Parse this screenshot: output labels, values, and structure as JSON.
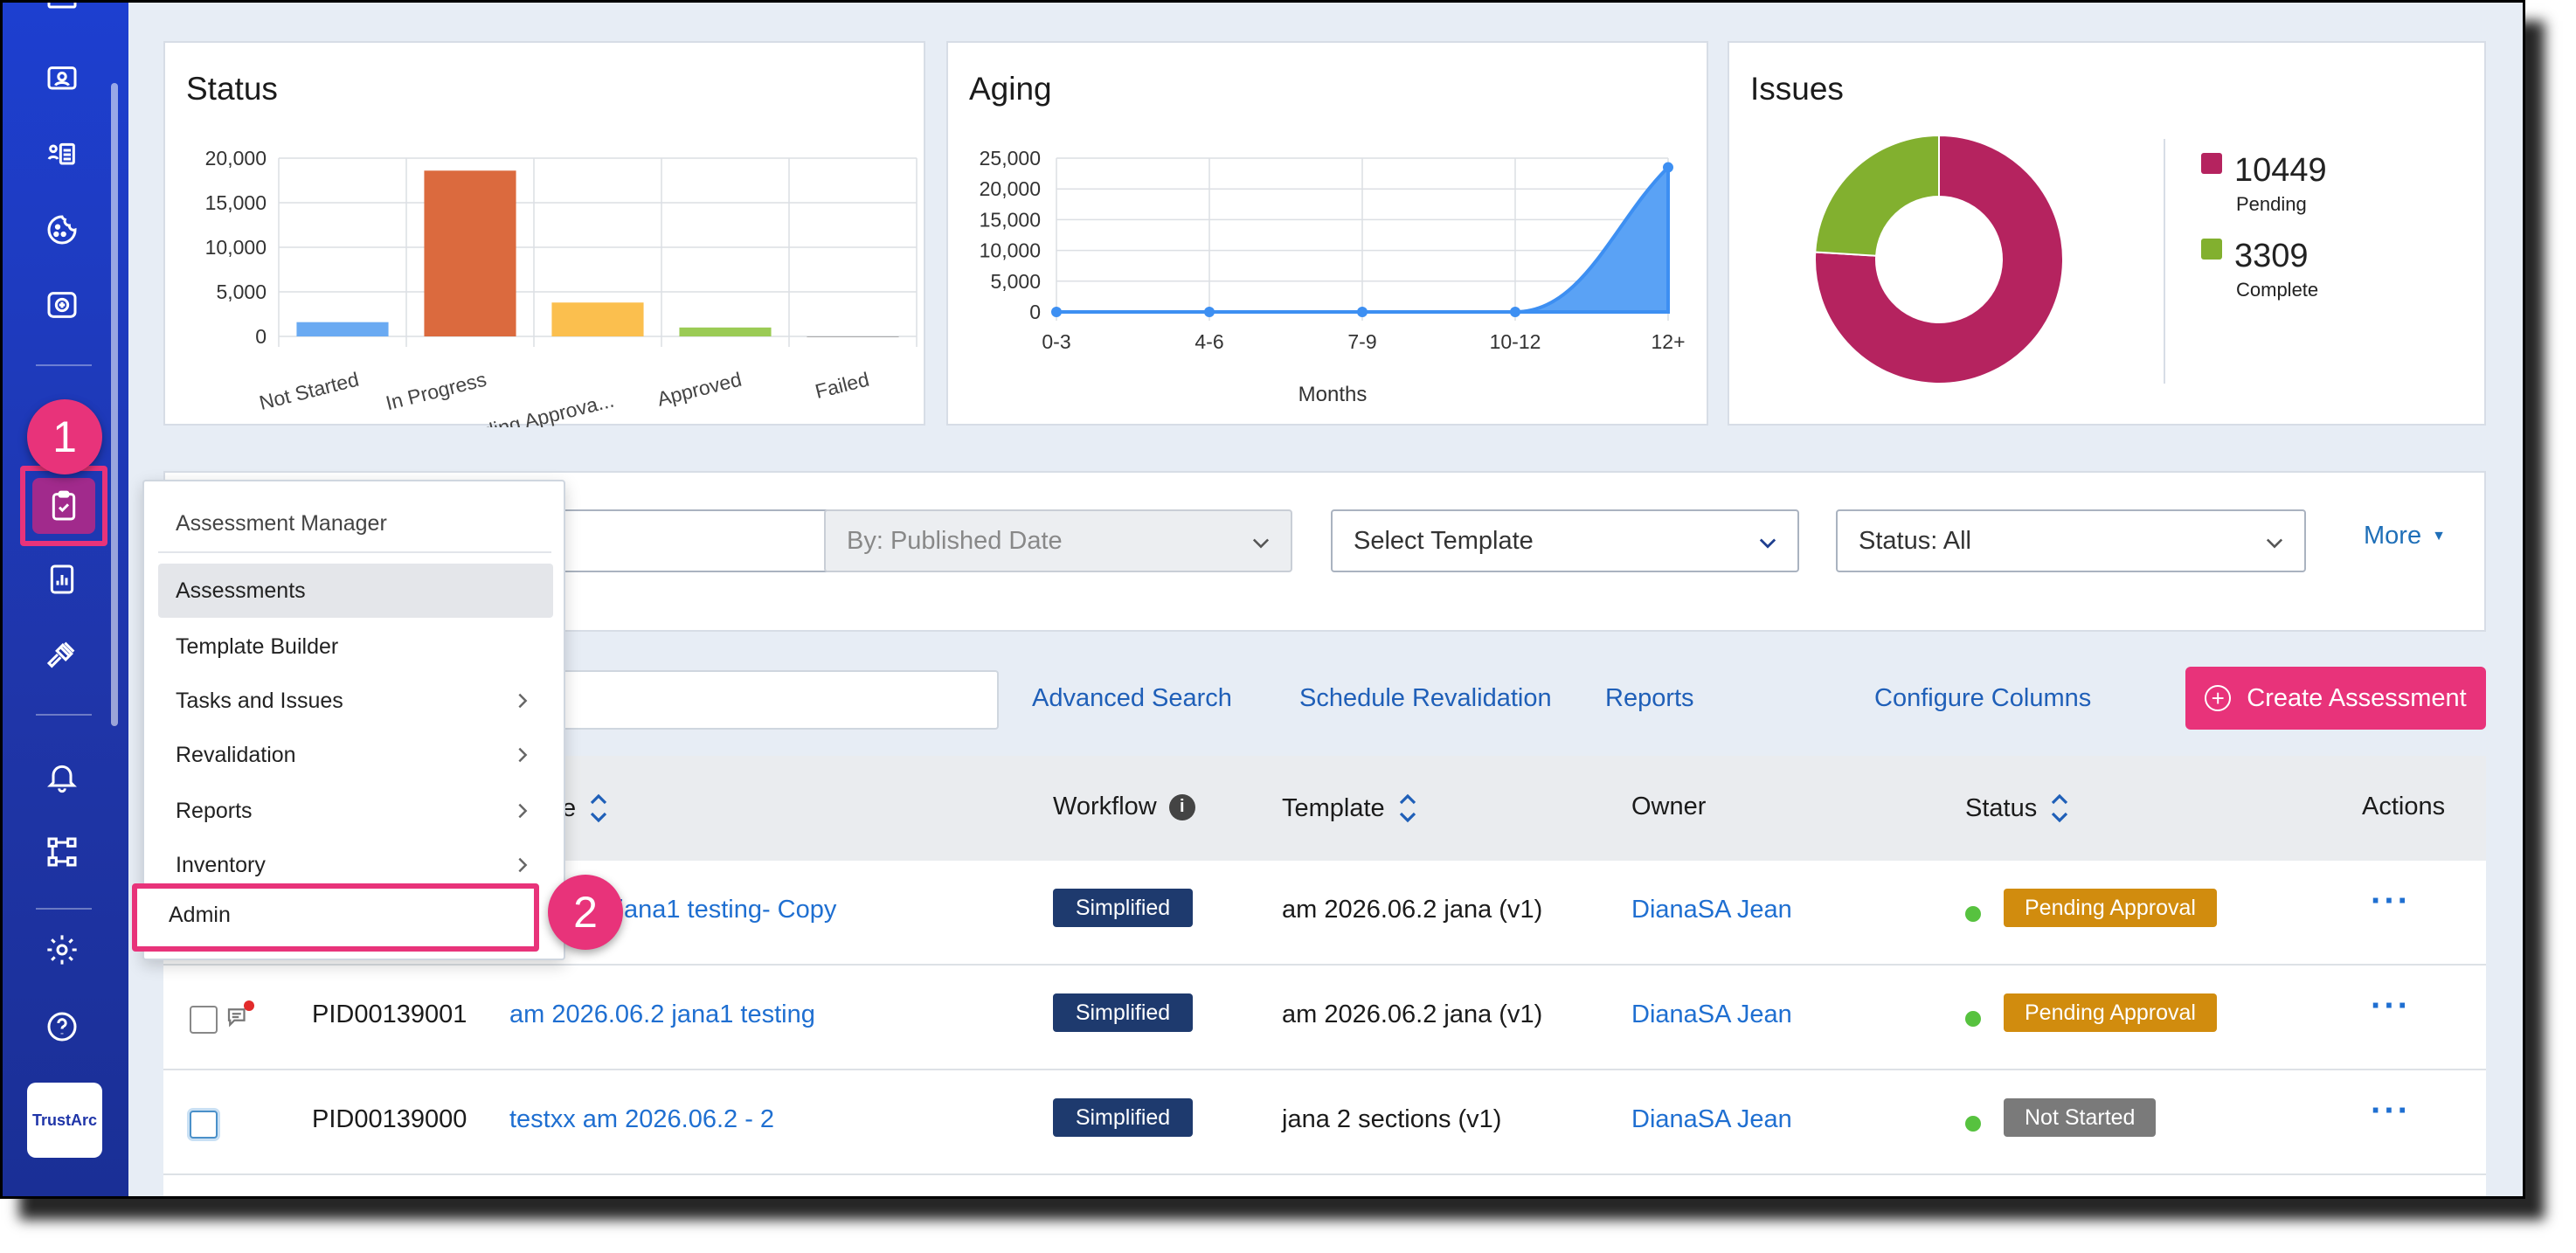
{
  "charts": {
    "status": {
      "title": "Status",
      "y_ticks": [
        "20,000",
        "15,000",
        "10,000",
        "5,000",
        "0"
      ]
    },
    "aging": {
      "title": "Aging",
      "y_ticks": [
        "25,000",
        "20,000",
        "15,000",
        "10,000",
        "5,000",
        "0"
      ]
    },
    "issues": {
      "title": "Issues",
      "legend": [
        {
          "value": "10449",
          "label": "Pending",
          "color": "#b5235f"
        },
        {
          "value": "3309",
          "label": "Complete",
          "color": "#82b02f"
        }
      ]
    }
  },
  "chart_data": [
    {
      "type": "bar",
      "title": "Status",
      "categories": [
        "Not Started",
        "In Progress",
        "Pending Approva...",
        "Approved",
        "Failed"
      ],
      "values": [
        1600,
        18600,
        3800,
        1000,
        0
      ],
      "colors": [
        "#6aaaf2",
        "#db6a3e",
        "#fbbf4e",
        "#9bcb55",
        "#aaaaaa"
      ],
      "ylim": [
        0,
        20000
      ],
      "grid": true,
      "legend": "none"
    },
    {
      "type": "area",
      "title": "Aging",
      "categories": [
        "0-3",
        "4-6",
        "7-9",
        "10-12",
        "12+"
      ],
      "values": [
        0,
        0,
        0,
        0,
        23500
      ],
      "xlabel": "Months",
      "ylim": [
        0,
        25000
      ],
      "grid": true,
      "color": "#3d8ff2"
    },
    {
      "type": "pie",
      "title": "Issues",
      "labels": [
        "Pending",
        "Complete"
      ],
      "values": [
        10449,
        3309
      ],
      "colors": [
        "#b5235f",
        "#82b02f"
      ],
      "legend": "right"
    }
  ],
  "filters": {
    "date_select": "By: Published Date",
    "template_select": "Select Template",
    "status_select": "Status: All",
    "more": "More"
  },
  "toolbar": {
    "advanced_search": "Advanced Search",
    "schedule_revalidation": "Schedule Revalidation",
    "reports": "Reports",
    "configure_columns": "Configure Columns",
    "create_assessment": "Create Assessment"
  },
  "table": {
    "headers": {
      "name_partial": "e",
      "workflow": "Workflow",
      "template": "Template",
      "owner": "Owner",
      "status": "Status",
      "actions": "Actions"
    },
    "rows": [
      {
        "id": "",
        "name": "06.2 jana1 testing- Copy",
        "workflow": "Simplified",
        "template": "am 2026.06.2 jana (v1)",
        "owner": "DianaSA Jean",
        "status": "Pending Approval",
        "status_color": "#d18c0e",
        "actions": "···"
      },
      {
        "id": "PID00139001",
        "name": "am 2026.06.2 jana1 testing",
        "workflow": "Simplified",
        "template": "am 2026.06.2 jana (v1)",
        "owner": "DianaSA Jean",
        "status": "Pending Approval",
        "status_color": "#d18c0e",
        "actions": "···"
      },
      {
        "id": "PID00139000",
        "name": "testxx am 2026.06.2 - 2",
        "workflow": "Simplified",
        "template": "jana 2 sections (v1)",
        "owner": "DianaSA Jean",
        "status": "Not Started",
        "status_color": "#7a7a7a",
        "actions": "···"
      }
    ]
  },
  "menu": {
    "header": "Assessment Manager",
    "items": [
      {
        "label": "Assessments",
        "has_submenu": false
      },
      {
        "label": "Template Builder",
        "has_submenu": false
      },
      {
        "label": "Tasks and Issues",
        "has_submenu": true
      },
      {
        "label": "Revalidation",
        "has_submenu": true
      },
      {
        "label": "Reports",
        "has_submenu": true
      },
      {
        "label": "Inventory",
        "has_submenu": true
      },
      {
        "label": "Admin",
        "has_submenu": false
      }
    ]
  },
  "callouts": [
    "1",
    "2"
  ],
  "sidebar": {
    "logo_text": "TrustArc",
    "icons": [
      "dashboard-icon",
      "contacts-icon",
      "list-icon",
      "cookie-icon",
      "data-icon",
      "assessment-icon",
      "reports-icon",
      "gavel-icon",
      "bell-icon",
      "workflow-icon",
      "settings-icon",
      "help-icon"
    ]
  }
}
